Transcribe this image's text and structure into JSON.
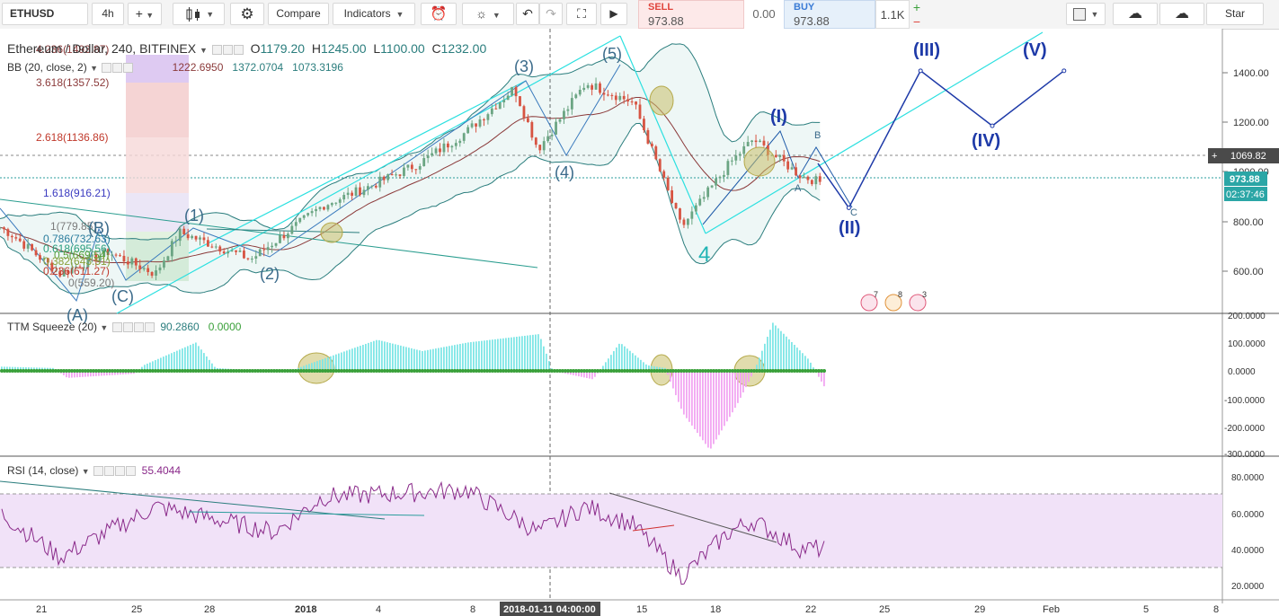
{
  "toolbar": {
    "symbol": "ETHUSD",
    "interval": "4h",
    "plus": "+",
    "compare": "Compare",
    "indicators": "Indicators",
    "sell_label": "SELL",
    "sell_price": "973.88",
    "spread": "0.00",
    "buy_label": "BUY",
    "buy_price": "973.88",
    "quantity": "1.1K",
    "qty_plus": "+",
    "qty_minus": "−",
    "star": "Star"
  },
  "main_pane": {
    "title": "Ethereum / Dollar, 240, BITFINEX",
    "ohlc": {
      "o_label": "O",
      "o": "1179.20",
      "h_label": "H",
      "h": "1245.00",
      "l_label": "L",
      "l": "1100.00",
      "c_label": "C",
      "c": "1232.00"
    },
    "bb": {
      "label": "BB (20, close, 2)",
      "basis": "1222.6950",
      "upper": "1372.0704",
      "lower": "1073.3196"
    },
    "fib_levels": [
      "4.236(1493.87)",
      "3.618(1357.52)",
      "2.618(1136.86)",
      "1.618(916.21)",
      "1(779.85)",
      "0.786(732.63)",
      "0.618(695.56)",
      "0.5(669.54)",
      "0.382(643.51)",
      "0.236(611.27)",
      "0(559.20)"
    ],
    "wave_labels": {
      "w1": "(1)",
      "w2": "(2)",
      "w3": "(3)",
      "w4": "(4)",
      "w5": "(5)",
      "a": "(A)",
      "b": "(B)",
      "c": "(C)",
      "big4": "4",
      "I": "(I)",
      "II": "(II)",
      "III": "(III)",
      "IV": "(IV)",
      "V": "(V)",
      "sa": "A",
      "sb": "B",
      "sc": "C"
    },
    "event_badges": [
      "7",
      "8",
      "3"
    ]
  },
  "price_axis": {
    "ticks": [
      "1400.00",
      "1200.00",
      "1000.00",
      "800.00",
      "600.00"
    ],
    "crosshair_price": "1069.82",
    "last_price": "973.88",
    "countdown": "02:37:46"
  },
  "ttm_pane": {
    "label": "TTM Squeeze (20)",
    "v1": "90.2860",
    "v2": "0.0000",
    "ticks": [
      "200.0000",
      "100.0000",
      "0.0000",
      "-100.0000",
      "-200.0000",
      "-300.0000"
    ]
  },
  "rsi_pane": {
    "label": "RSI (14, close)",
    "value": "55.4044",
    "ticks": [
      "80.0000",
      "60.0000",
      "40.0000",
      "20.0000"
    ]
  },
  "time_axis": {
    "labels": [
      "21",
      "25",
      "28",
      "2018",
      "4",
      "8",
      "15",
      "18",
      "22",
      "25",
      "29",
      "Feb",
      "5",
      "8"
    ],
    "crosshair_time": "2018-01-11 04:00:00"
  },
  "colors": {
    "bull": "#6ba583",
    "bear": "#d75442",
    "bb_band": "#2a7d7d",
    "bb_basis": "#8b3a3a",
    "wave_blue": "#1e3aa8",
    "cyan": "#2ce0e0",
    "rsi": "#8a2a8a",
    "ttm_cyan": "#7fe6e6",
    "ttm_magenta": "#f2a6f2",
    "dot_green": "#3aa03a",
    "ellipse": "#b5a94a"
  },
  "chart_data": {
    "type": "candlestick",
    "instrument": "ETHUSD",
    "timeframe": "4h",
    "price_range": [
      500,
      1520
    ],
    "highlights": {
      "bb_upper_last": 1372.07,
      "bb_basis_last": 1222.7,
      "bb_lower_last": 1073.32,
      "last_price": 973.88,
      "crosshair_price": 1069.82
    },
    "price_path": [
      {
        "t": "2017-12-19",
        "p": 820
      },
      {
        "t": "2017-12-20",
        "p": 760
      },
      {
        "t": "2017-12-22",
        "p": 600
      },
      {
        "t": "2017-12-24",
        "p": 690
      },
      {
        "t": "2017-12-26",
        "p": 600
      },
      {
        "t": "2017-12-27",
        "p": 770
      },
      {
        "t": "2017-12-30",
        "p": 660
      },
      {
        "t": "2018-01-02",
        "p": 880
      },
      {
        "t": "2018-01-04",
        "p": 960
      },
      {
        "t": "2018-01-06",
        "p": 1050
      },
      {
        "t": "2018-01-08",
        "p": 1180
      },
      {
        "t": "2018-01-10",
        "p": 1360
      },
      {
        "t": "2018-01-11",
        "p": 1110
      },
      {
        "t": "2018-01-13",
        "p": 1380
      },
      {
        "t": "2018-01-15",
        "p": 1300
      },
      {
        "t": "2018-01-17",
        "p": 790
      },
      {
        "t": "2018-01-19",
        "p": 1050
      },
      {
        "t": "2018-01-20",
        "p": 1150
      },
      {
        "t": "2018-01-22",
        "p": 1000
      },
      {
        "t": "2018-01-22 20:00",
        "p": 974
      }
    ],
    "projection": [
      {
        "t": "2018-01-24",
        "p": 870,
        "label": "(II)"
      },
      {
        "t": "2018-01-27",
        "p": 1430,
        "label": "(III)"
      },
      {
        "t": "2018-01-30",
        "p": 1205,
        "label": "(IV)"
      },
      {
        "t": "2018-02-02",
        "p": 1430,
        "label": "(V)"
      }
    ],
    "ttm_squeeze": {
      "last": 90.286,
      "range": [
        -300,
        200
      ]
    },
    "rsi": {
      "last": 55.4044,
      "range": [
        10,
        90
      ],
      "band": [
        30,
        70
      ],
      "path": [
        {
          "t": "2017-12-19",
          "v": 70
        },
        {
          "t": "2017-12-22",
          "v": 32
        },
        {
          "t": "2017-12-26",
          "v": 68
        },
        {
          "t": "2017-12-31",
          "v": 50
        },
        {
          "t": "2018-01-02",
          "v": 75
        },
        {
          "t": "2018-01-08",
          "v": 80
        },
        {
          "t": "2018-01-11",
          "v": 50
        },
        {
          "t": "2018-01-13",
          "v": 68
        },
        {
          "t": "2018-01-15",
          "v": 55
        },
        {
          "t": "2018-01-17",
          "v": 18
        },
        {
          "t": "2018-01-19",
          "v": 50
        },
        {
          "t": "2018-01-20",
          "v": 58
        },
        {
          "t": "2018-01-22",
          "v": 38
        }
      ]
    }
  }
}
